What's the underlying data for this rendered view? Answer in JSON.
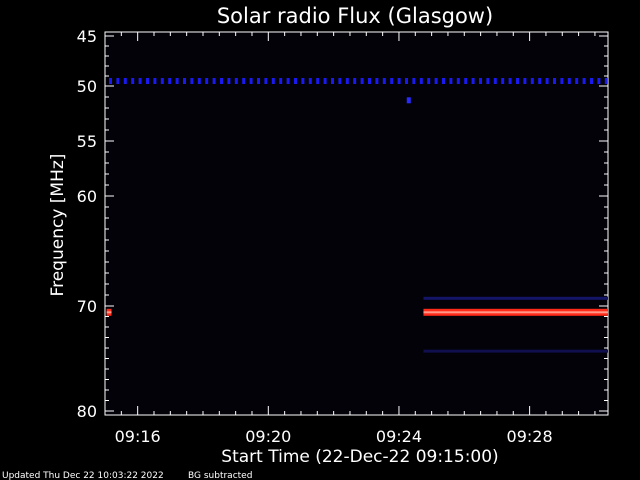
{
  "chart_data": {
    "type": "heatmap",
    "title": "Solar radio Flux (Glasgow)",
    "xlabel": "Start Time (22-Dec-22 09:15:00)",
    "ylabel": "Frequency [MHz]",
    "x_range_min": [
      15.0,
      30.4
    ],
    "x_ticks": [
      {
        "value": 16,
        "label": "09:16"
      },
      {
        "value": 20,
        "label": "09:20"
      },
      {
        "value": 24,
        "label": "09:24"
      },
      {
        "value": 28,
        "label": "09:28"
      }
    ],
    "y_ticks": [
      {
        "value": 45,
        "label": "45"
      },
      {
        "value": 50,
        "label": "50"
      },
      {
        "value": 55,
        "label": "55"
      },
      {
        "value": 60,
        "label": "60"
      },
      {
        "value": 70,
        "label": "70"
      },
      {
        "value": 80,
        "label": "80"
      }
    ],
    "features": [
      {
        "kind": "dotted-band",
        "freq": 49.5,
        "t_start": 15.0,
        "t_end": 30.4,
        "color": "#1a1aee"
      },
      {
        "kind": "spot",
        "freq": 51.3,
        "t": 24.3,
        "color": "#2a2aff"
      },
      {
        "kind": "band",
        "freq": 70.6,
        "t_start": 15.05,
        "t_end": 15.2,
        "color": "#ff2a1a"
      },
      {
        "kind": "band",
        "freq": 70.6,
        "t_start": 24.75,
        "t_end": 30.4,
        "color": "#ff2a1a"
      },
      {
        "kind": "faint-band",
        "freq": 69.3,
        "t_start": 24.75,
        "t_end": 30.4,
        "color": "#141468"
      },
      {
        "kind": "faint-band",
        "freq": 74.3,
        "t_start": 24.75,
        "t_end": 30.4,
        "color": "#10104e"
      }
    ]
  },
  "footer": {
    "updated": "Updated Thu Dec 22 10:03:22 2022",
    "note": "BG subtracted"
  }
}
